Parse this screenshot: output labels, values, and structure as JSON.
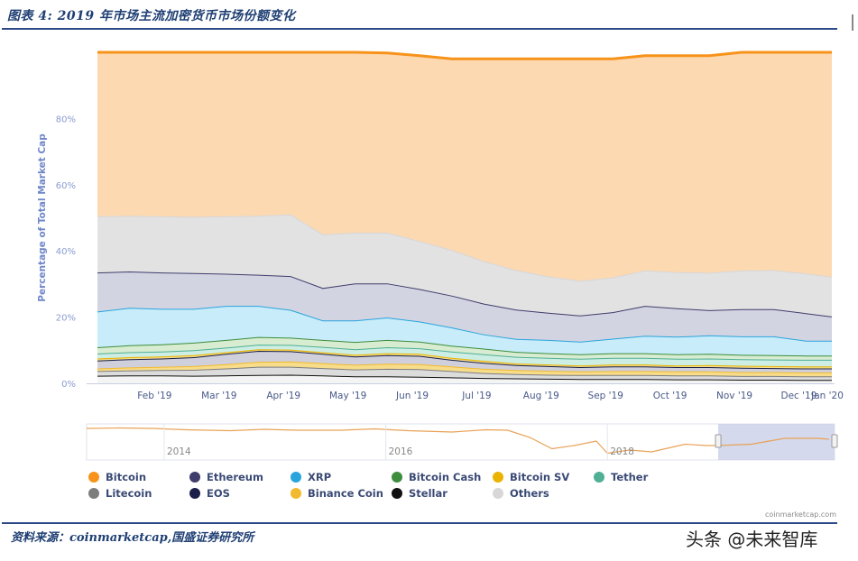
{
  "page": {
    "title": "图表 4:  2019 年市场主流加密货币市场份额变化",
    "source": "资料来源：coinmarketcap,国盛证券研究所",
    "watermark": "头条 @未来智库",
    "credit": "coinmarketcap.com"
  },
  "chart_data": {
    "type": "area",
    "stacked": true,
    "title": "",
    "ylabel": "Percentage of Total Market Cap",
    "ylim": [
      0,
      100
    ],
    "yticks": [
      "0%",
      "20%",
      "40%",
      "60%",
      "80%"
    ],
    "xticks": [
      "Feb '19",
      "Mar '19",
      "Apr '19",
      "May '19",
      "Jun '19",
      "Jul '19",
      "Aug '19",
      "Sep '19",
      "Oct '19",
      "Nov '19",
      "Dec '19",
      "Jan '20"
    ],
    "x_months": [
      0,
      0.5,
      1,
      1.5,
      2,
      2.5,
      3,
      3.5,
      4,
      4.5,
      5,
      5.5,
      6,
      6.5,
      7,
      7.5,
      8,
      8.5,
      9,
      9.5,
      10,
      10.5,
      11,
      11.4
    ],
    "x_tick_months": [
      1,
      2,
      3,
      4,
      5,
      6,
      7,
      8,
      9,
      10,
      11,
      11.8
    ],
    "series": [
      {
        "name": "Stellar",
        "color": "#111111",
        "values": [
          2.3,
          2.4,
          2.4,
          2.3,
          2.4,
          2.5,
          2.6,
          2.4,
          2.1,
          2.1,
          2.0,
          1.8,
          1.6,
          1.5,
          1.4,
          1.3,
          1.3,
          1.3,
          1.2,
          1.2,
          1.1,
          1.1,
          1.0,
          1.0
        ]
      },
      {
        "name": "Litecoin",
        "color": "#7d7d7d",
        "values": [
          1.4,
          1.5,
          1.6,
          1.8,
          2.1,
          2.5,
          2.4,
          2.2,
          2.1,
          2.3,
          2.3,
          1.9,
          1.5,
          1.3,
          1.2,
          1.2,
          1.2,
          1.2,
          1.2,
          1.2,
          1.1,
          1.1,
          1.1,
          1.1
        ]
      },
      {
        "name": "Binance Coin",
        "color": "#f3ba2f",
        "values": [
          0.8,
          0.9,
          1.0,
          1.1,
          1.3,
          1.5,
          1.6,
          1.5,
          1.4,
          1.5,
          1.5,
          1.4,
          1.3,
          1.2,
          1.2,
          1.1,
          1.2,
          1.2,
          1.2,
          1.2,
          1.2,
          1.2,
          1.2,
          1.2
        ]
      },
      {
        "name": "EOS",
        "color": "#1b1f4a",
        "values": [
          2.4,
          2.5,
          2.5,
          2.7,
          3.1,
          3.3,
          3.1,
          2.8,
          2.5,
          2.6,
          2.5,
          2.0,
          1.8,
          1.5,
          1.4,
          1.3,
          1.4,
          1.4,
          1.3,
          1.3,
          1.3,
          1.2,
          1.2,
          1.2
        ]
      },
      {
        "name": "Bitcoin SV",
        "color": "#eab300",
        "values": [
          0.6,
          0.6,
          0.6,
          0.6,
          0.5,
          0.5,
          0.5,
          0.5,
          0.5,
          0.6,
          0.6,
          0.6,
          0.6,
          0.5,
          0.5,
          0.5,
          0.6,
          0.6,
          0.5,
          0.6,
          0.6,
          0.6,
          0.6,
          0.6
        ]
      },
      {
        "name": "Tether",
        "color": "#50af95",
        "values": [
          1.5,
          1.5,
          1.5,
          1.5,
          1.4,
          1.4,
          1.4,
          1.6,
          1.7,
          1.8,
          1.7,
          1.9,
          2.0,
          2.0,
          2.0,
          2.0,
          2.0,
          2.0,
          2.0,
          2.0,
          2.0,
          2.0,
          2.0,
          2.0
        ]
      },
      {
        "name": "Bitcoin Cash",
        "color": "#3d8d3d",
        "values": [
          1.9,
          2.1,
          2.2,
          2.3,
          2.3,
          2.3,
          2.2,
          2.1,
          2.2,
          2.2,
          2.0,
          1.8,
          1.7,
          1.5,
          1.4,
          1.4,
          1.4,
          1.4,
          1.4,
          1.4,
          1.3,
          1.3,
          1.3,
          1.3
        ]
      },
      {
        "name": "XRP",
        "color": "#2aa4dc",
        "values": [
          10.8,
          11.3,
          10.7,
          10.2,
          10.3,
          9.4,
          8.4,
          5.9,
          6.5,
          6.8,
          6.1,
          5.5,
          4.3,
          3.9,
          4.0,
          3.8,
          4.4,
          5.3,
          5.3,
          5.6,
          5.6,
          5.7,
          4.5,
          4.5
        ]
      },
      {
        "name": "Ethereum",
        "color": "#3f3d6b",
        "values": [
          11.8,
          11.0,
          11.0,
          10.8,
          9.7,
          9.4,
          10.2,
          9.8,
          11.2,
          10.3,
          9.8,
          9.6,
          9.3,
          8.9,
          8.2,
          7.9,
          8.0,
          9.0,
          8.6,
          7.6,
          8.2,
          8.2,
          8.3,
          7.3
        ]
      },
      {
        "name": "Others",
        "color": "#d7d7d7",
        "values": [
          17.0,
          16.8,
          17.0,
          17.0,
          17.4,
          17.8,
          18.6,
          16.2,
          15.3,
          15.3,
          14.5,
          13.8,
          12.8,
          11.9,
          11.0,
          10.5,
          10.5,
          10.7,
          10.9,
          11.3,
          11.7,
          11.8,
          12.0,
          12.0
        ]
      },
      {
        "name": "Bitcoin",
        "color": "#f7931a",
        "values": [
          49.5,
          49.4,
          49.5,
          49.7,
          49.5,
          49.4,
          49.0,
          55.0,
          54.5,
          54.3,
          56.0,
          57.7,
          61.1,
          63.8,
          65.7,
          67.0,
          66.0,
          64.9,
          65.4,
          65.6,
          65.9,
          65.8,
          66.8,
          67.8
        ]
      }
    ],
    "legend": [
      "Bitcoin",
      "Ethereum",
      "XRP",
      "Bitcoin Cash",
      "Bitcoin SV",
      "Tether",
      "Litecoin",
      "EOS",
      "Binance Coin",
      "Stellar",
      "Others"
    ],
    "legend_colors": {
      "Bitcoin": "#f7931a",
      "Ethereum": "#3f3d6b",
      "XRP": "#2aa4dc",
      "Bitcoin Cash": "#3d8d3d",
      "Bitcoin SV": "#eab300",
      "Tether": "#50af95",
      "Litecoin": "#7d7d7d",
      "EOS": "#1b1f4a",
      "Binance Coin": "#f3ba2f",
      "Stellar": "#111111",
      "Others": "#d7d7d7"
    },
    "navigator": {
      "labels": [
        "2014",
        "2016",
        "2018"
      ],
      "label_years": [
        2014,
        2016,
        2018
      ],
      "year_range": [
        2013.3,
        2020.05
      ],
      "selected_years": [
        2019.0,
        2020.05
      ],
      "bitcoin_share_points": [
        [
          2013.3,
          90
        ],
        [
          2013.6,
          91
        ],
        [
          2013.9,
          90
        ],
        [
          2014.2,
          87
        ],
        [
          2014.6,
          85
        ],
        [
          2014.9,
          88
        ],
        [
          2015.2,
          86
        ],
        [
          2015.6,
          86
        ],
        [
          2015.9,
          89
        ],
        [
          2016.2,
          85
        ],
        [
          2016.6,
          82
        ],
        [
          2016.9,
          87
        ],
        [
          2017.1,
          86
        ],
        [
          2017.3,
          70
        ],
        [
          2017.5,
          45
        ],
        [
          2017.7,
          52
        ],
        [
          2017.9,
          62
        ],
        [
          2018.0,
          35
        ],
        [
          2018.2,
          42
        ],
        [
          2018.4,
          38
        ],
        [
          2018.7,
          55
        ],
        [
          2018.9,
          52
        ],
        [
          2019.0,
          52
        ],
        [
          2019.3,
          55
        ],
        [
          2019.6,
          68
        ],
        [
          2019.9,
          68
        ],
        [
          2020.0,
          66
        ]
      ]
    }
  }
}
